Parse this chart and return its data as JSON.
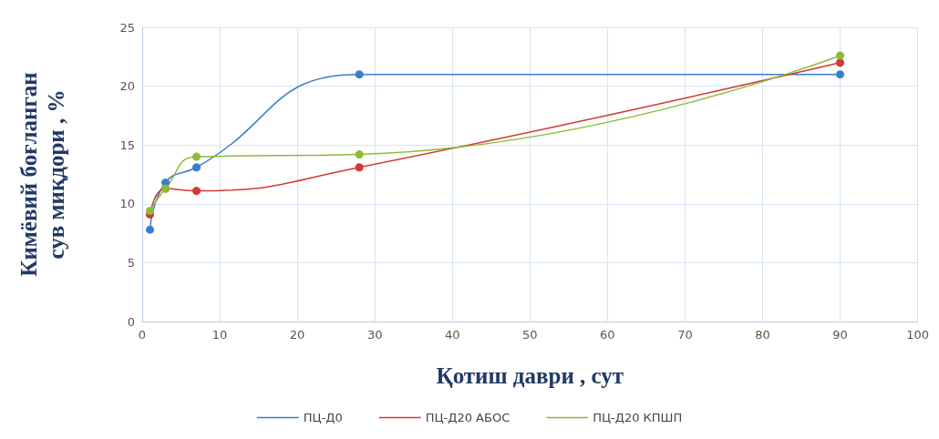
{
  "chart_data": {
    "type": "line",
    "xlabel": "Қотиш даври , сут",
    "ylabel": "Кимёвий боғланган\nсув миқдори , %",
    "x": [
      1,
      3,
      7,
      28,
      90
    ],
    "series": [
      {
        "name": "ПЦ-Д0",
        "color": "#3a7dcc",
        "values": [
          7.8,
          11.8,
          13.1,
          21.0,
          21.0
        ]
      },
      {
        "name": "ПЦ-Д20 АБОС",
        "color": "#d23a34",
        "values": [
          9.1,
          11.3,
          11.1,
          13.1,
          22.0
        ]
      },
      {
        "name": "ПЦ-Д20 КПШП",
        "color": "#8dbb3a",
        "values": [
          9.4,
          11.3,
          14.0,
          14.2,
          22.6
        ]
      }
    ],
    "xlim": [
      0,
      100
    ],
    "xticks": [
      0,
      10,
      20,
      30,
      40,
      50,
      60,
      70,
      80,
      90,
      100
    ],
    "ylim": [
      0,
      25
    ],
    "yticks": [
      0,
      5,
      10,
      15,
      20,
      25
    ],
    "grid": true,
    "legend": "bottom",
    "marker": "circle",
    "line_style": "solid"
  }
}
